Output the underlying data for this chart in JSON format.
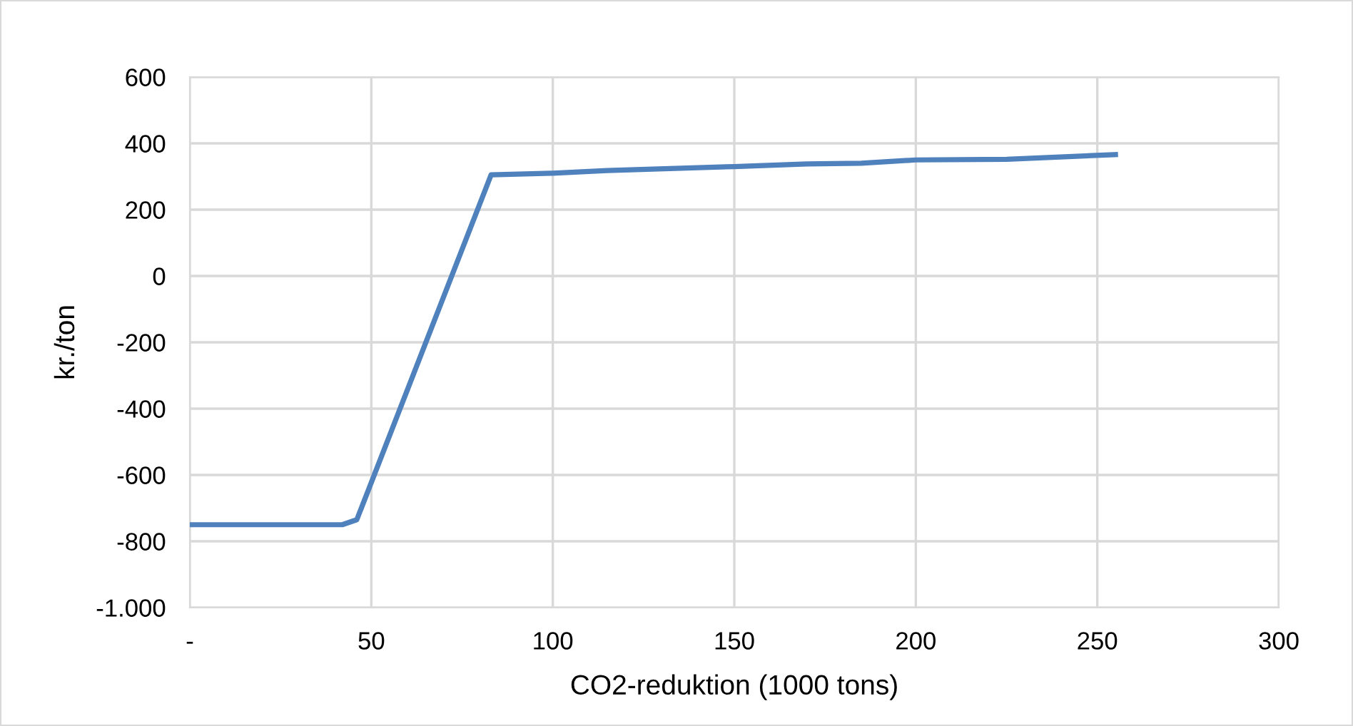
{
  "chart_data": {
    "type": "line",
    "xlabel": "CO2-reduktion (1000 tons)",
    "ylabel": "kr./ton",
    "x": [
      0,
      42,
      46,
      83,
      100,
      115,
      150,
      170,
      185,
      200,
      225,
      255
    ],
    "series": [
      {
        "color": "#4f81bd",
        "values": [
          -750,
          -750,
          -735,
          305,
          310,
          318,
          330,
          338,
          340,
          350,
          352,
          366
        ]
      }
    ],
    "xlim": [
      0,
      300
    ],
    "ylim": [
      -1000,
      600
    ],
    "xticks": [
      {
        "value": 0,
        "label": "-"
      },
      50,
      100,
      150,
      200,
      250,
      300
    ],
    "yticks": [
      {
        "value": -1000,
        "label": "-1.000"
      },
      -800,
      -600,
      -400,
      -200,
      0,
      200,
      400,
      600
    ],
    "grid": true,
    "marker": "none",
    "line_style": "solid",
    "legend": false
  }
}
